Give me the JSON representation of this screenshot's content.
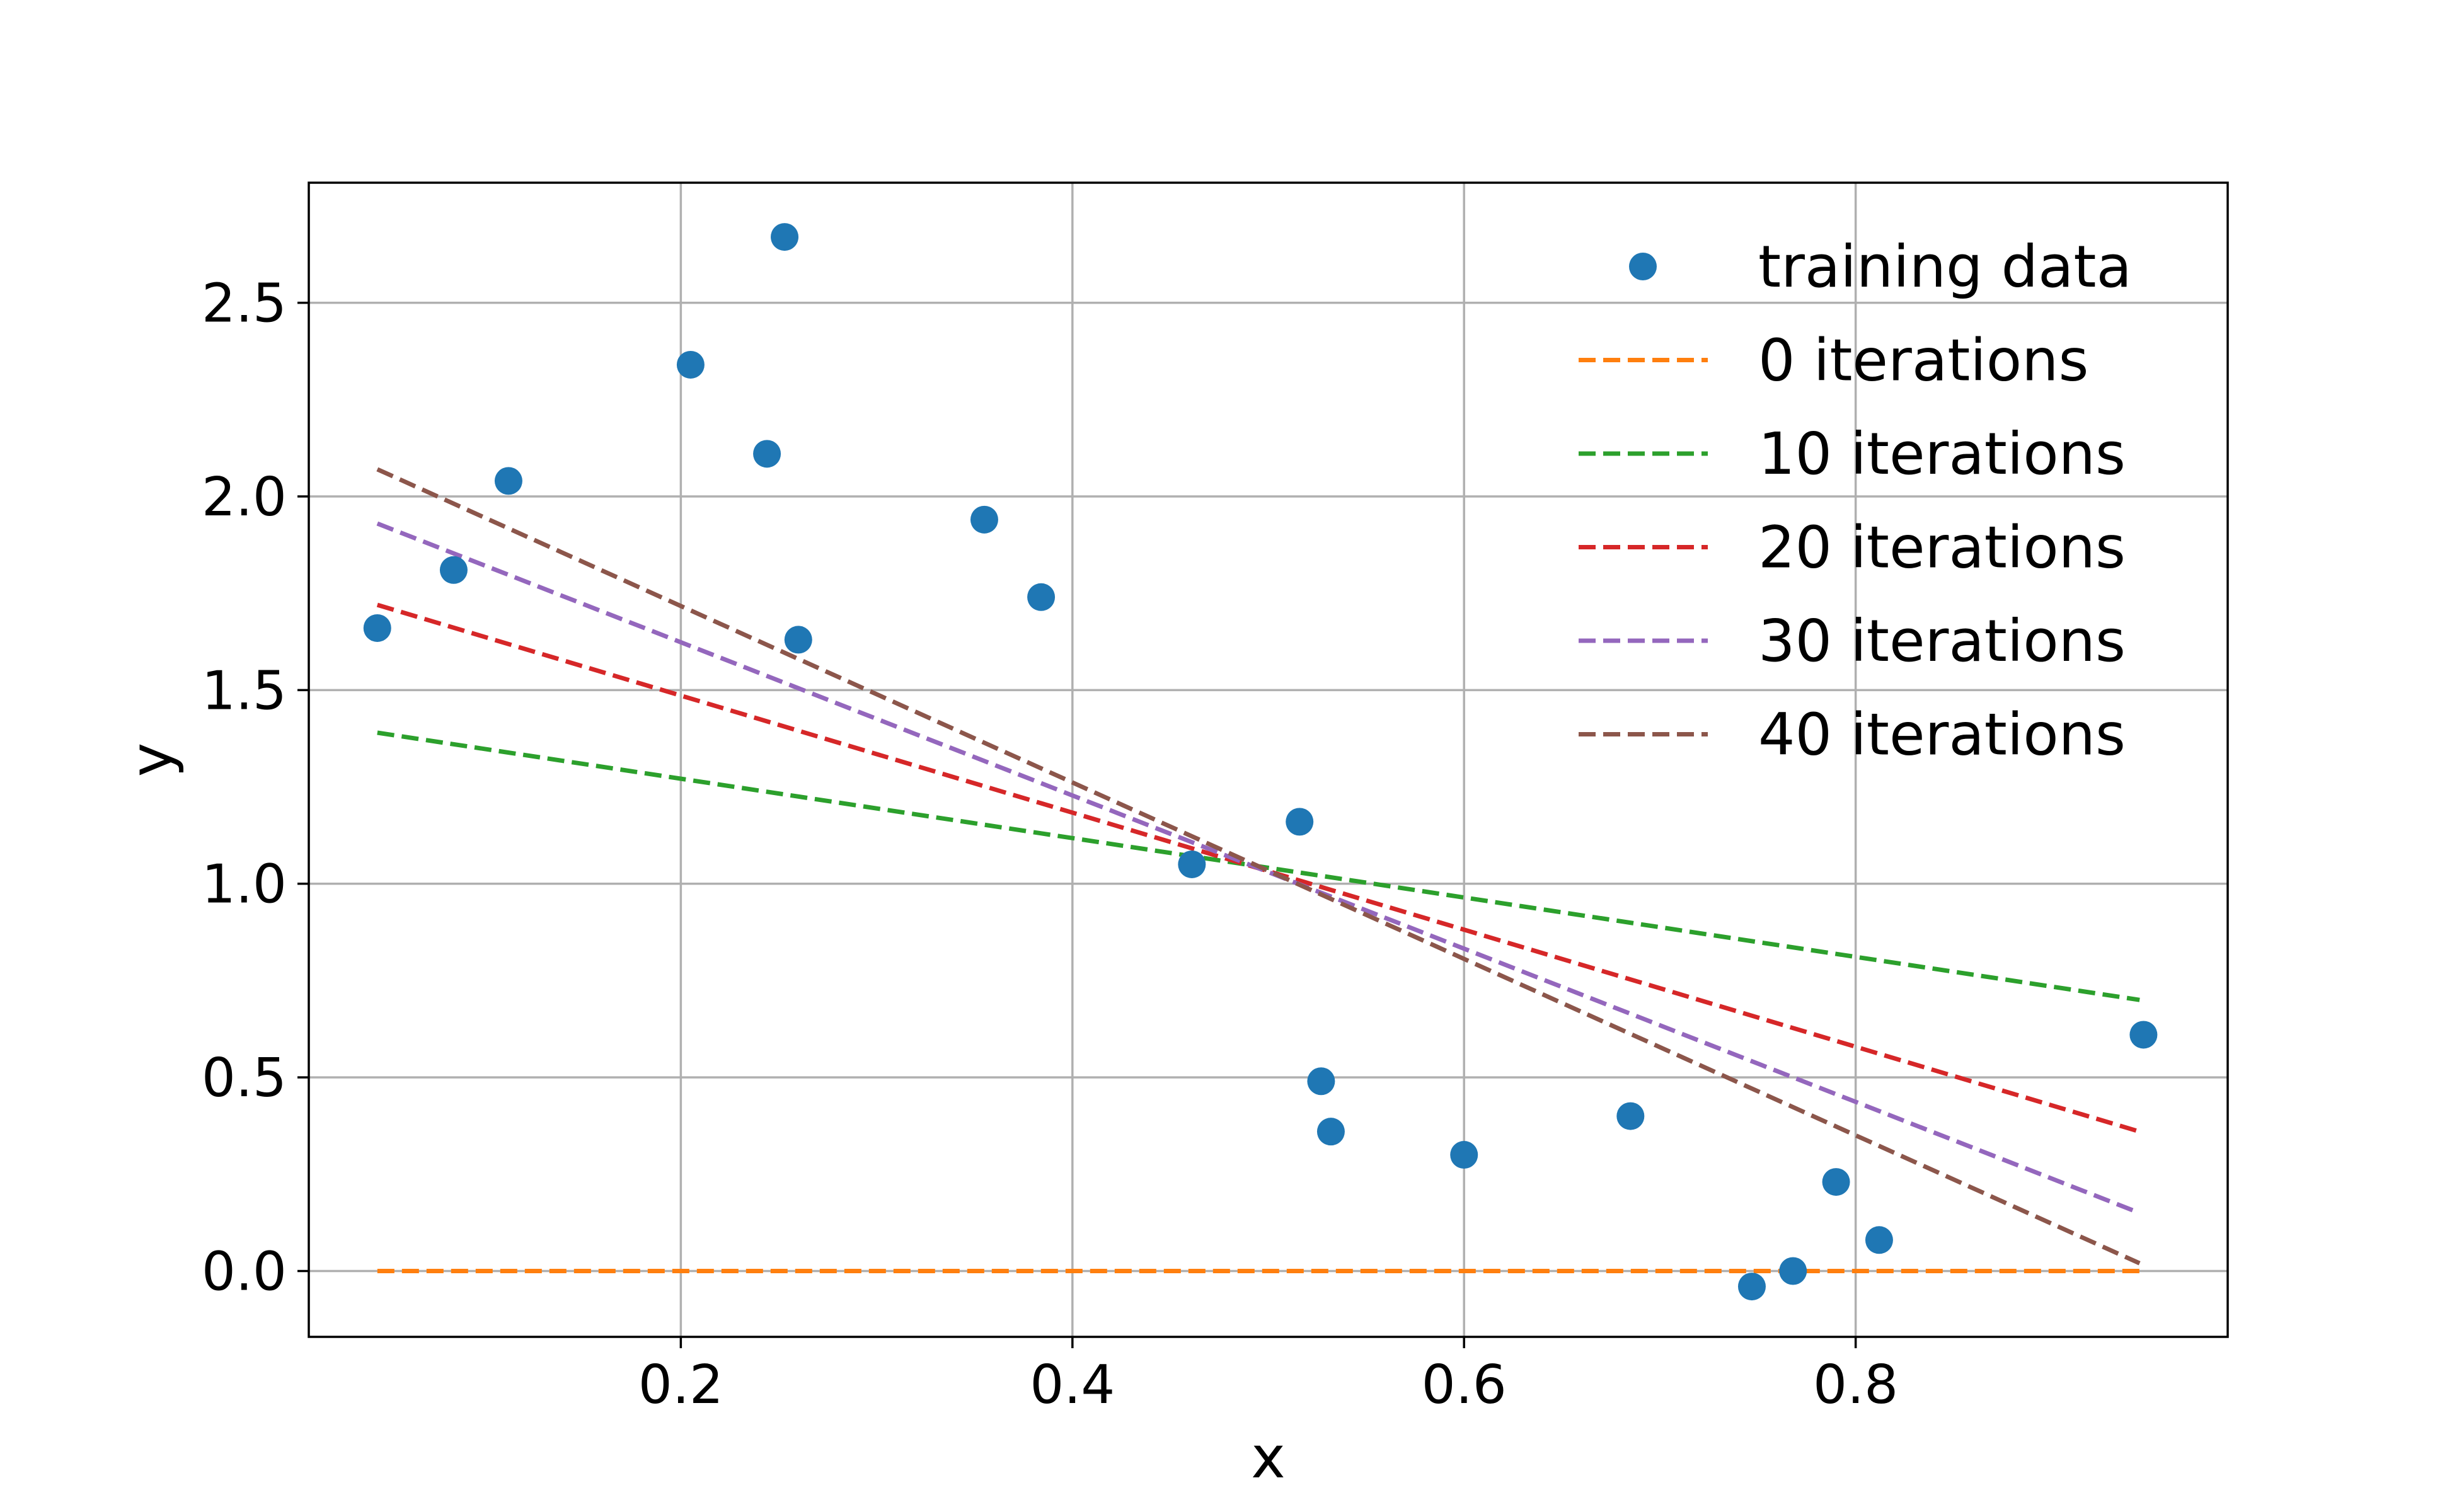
{
  "chart_data": {
    "type": "scatter",
    "title": "",
    "xlabel": "x",
    "ylabel": "y",
    "xlim": [
      0.01,
      0.99
    ],
    "ylim": [
      -0.17,
      2.81
    ],
    "grid": true,
    "legend_position": "top-right",
    "x_ticks": [
      {
        "value": 0.2,
        "label": "0.2"
      },
      {
        "value": 0.4,
        "label": "0.4"
      },
      {
        "value": 0.6,
        "label": "0.6"
      },
      {
        "value": 0.8,
        "label": "0.8"
      }
    ],
    "y_ticks": [
      {
        "value": 0.0,
        "label": "0.0"
      },
      {
        "value": 0.5,
        "label": "0.5"
      },
      {
        "value": 1.0,
        "label": "1.0"
      },
      {
        "value": 1.5,
        "label": "1.5"
      },
      {
        "value": 2.0,
        "label": "2.0"
      },
      {
        "value": 2.5,
        "label": "2.5"
      }
    ],
    "scatter": {
      "name": "training data",
      "color": "#1f77b4",
      "points": [
        {
          "x": 0.045,
          "y": 1.66
        },
        {
          "x": 0.084,
          "y": 1.81
        },
        {
          "x": 0.112,
          "y": 2.04
        },
        {
          "x": 0.205,
          "y": 2.34
        },
        {
          "x": 0.244,
          "y": 2.11
        },
        {
          "x": 0.253,
          "y": 2.67
        },
        {
          "x": 0.26,
          "y": 1.63
        },
        {
          "x": 0.355,
          "y": 1.94
        },
        {
          "x": 0.384,
          "y": 1.74
        },
        {
          "x": 0.461,
          "y": 1.05
        },
        {
          "x": 0.516,
          "y": 1.16
        },
        {
          "x": 0.527,
          "y": 0.49
        },
        {
          "x": 0.532,
          "y": 0.36
        },
        {
          "x": 0.6,
          "y": 0.3
        },
        {
          "x": 0.685,
          "y": 0.4
        },
        {
          "x": 0.747,
          "y": -0.04
        },
        {
          "x": 0.768,
          "y": 0.0
        },
        {
          "x": 0.79,
          "y": 0.23
        },
        {
          "x": 0.812,
          "y": 0.08
        },
        {
          "x": 0.947,
          "y": 0.61
        }
      ]
    },
    "series": [
      {
        "name": "0 iterations",
        "color": "#ff7f0e",
        "x": [
          0.045,
          0.945
        ],
        "y": [
          0.0,
          0.0
        ]
      },
      {
        "name": "10 iterations",
        "color": "#2ca02c",
        "x": [
          0.045,
          0.945
        ],
        "y": [
          1.39,
          0.7
        ]
      },
      {
        "name": "20 iterations",
        "color": "#d62728",
        "x": [
          0.045,
          0.945
        ],
        "y": [
          1.72,
          0.36
        ]
      },
      {
        "name": "30 iterations",
        "color": "#9467bd",
        "x": [
          0.045,
          0.945
        ],
        "y": [
          1.93,
          0.15
        ]
      },
      {
        "name": "40 iterations",
        "color": "#8c564b",
        "x": [
          0.045,
          0.945
        ],
        "y": [
          2.07,
          0.02
        ]
      }
    ]
  }
}
